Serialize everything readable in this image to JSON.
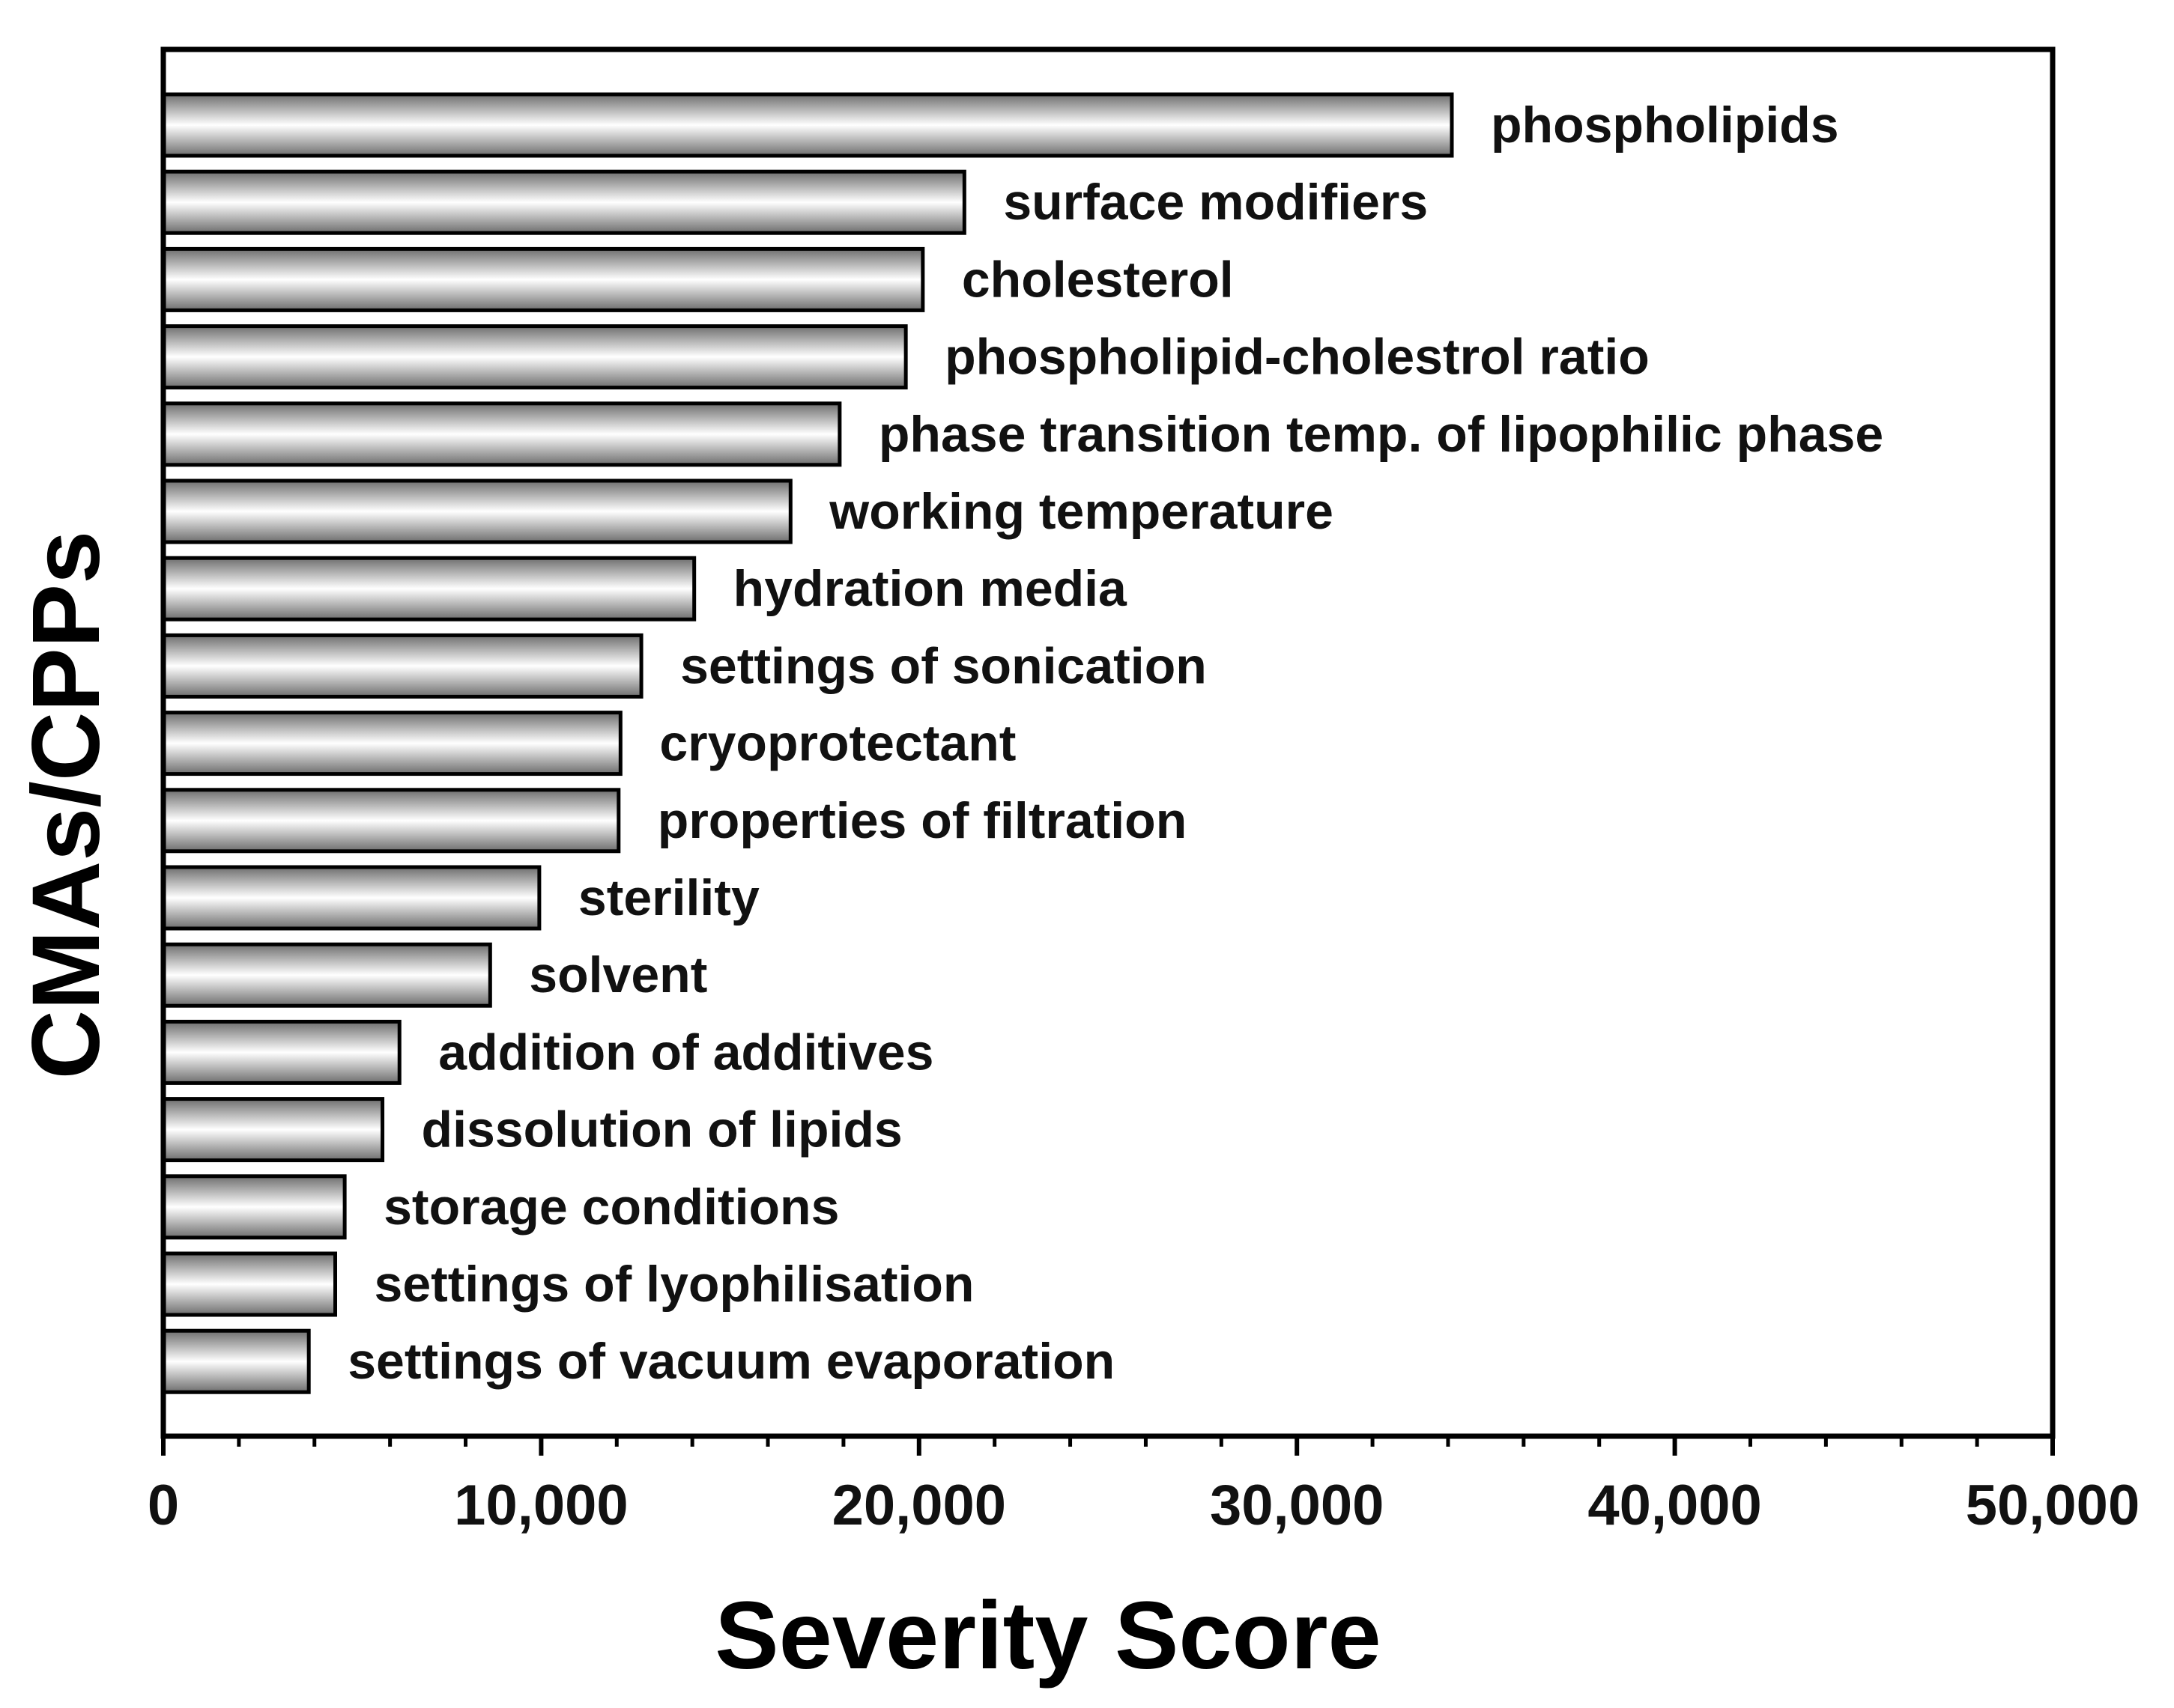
{
  "chart_data": {
    "type": "bar",
    "orientation": "horizontal",
    "title": "",
    "xlabel": "Severity Score",
    "ylabel": "CMAs/CPPs",
    "xlim": [
      0,
      50000
    ],
    "x_ticks": [
      0,
      10000,
      20000,
      30000,
      40000,
      50000
    ],
    "x_tick_labels": [
      "0",
      "10,000",
      "20,000",
      "30,000",
      "40,000",
      "50,000"
    ],
    "grid": false,
    "legend": "none",
    "categories": [
      "phospholipids",
      "surface modifiers",
      "cholesterol",
      "phospholipid-cholestrol ratio",
      "phase transition temp. of lipophilic phase",
      "working temperature",
      "hydration media",
      "settings of sonication",
      "cryoprotectant",
      "properties of filtration",
      "sterility",
      "solvent",
      "addition of additives",
      "dissolution of lipids",
      "storage conditions",
      "settings of lyophilisation",
      "settings of vacuum evaporation"
    ],
    "values": [
      34100,
      21200,
      20100,
      19650,
      17900,
      16600,
      14050,
      12650,
      12100,
      12050,
      9950,
      8650,
      6250,
      5800,
      4800,
      4550,
      3850
    ],
    "colors": {
      "bar_gradient_dark": "#6e6e6e",
      "bar_gradient_light": "#ffffff",
      "bar_stroke": "#000000",
      "axis": "#000000",
      "text": "#111111"
    }
  }
}
